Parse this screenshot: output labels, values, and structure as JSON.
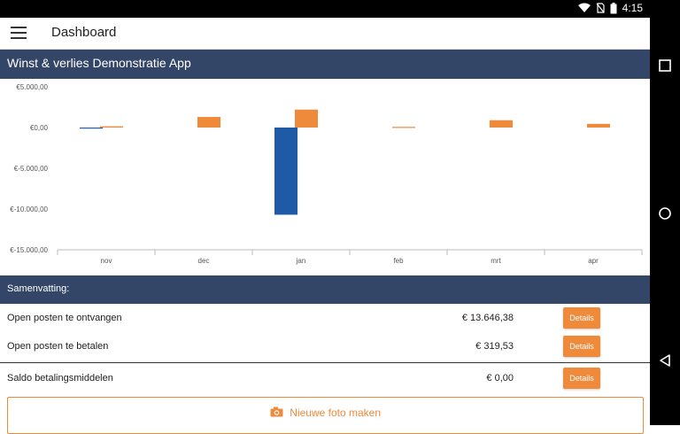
{
  "status_bar": {
    "time": "4:15",
    "icons": [
      "wifi-icon",
      "no-sim-icon",
      "battery-icon"
    ]
  },
  "nav_bar": {
    "buttons": [
      "recents-button",
      "home-button",
      "back-button"
    ]
  },
  "app_bar": {
    "title": "Dashboard",
    "menu_icon": "hamburger-menu-icon"
  },
  "chart_section": {
    "title": "Winst & verlies Demonstratie App"
  },
  "chart_data": {
    "type": "bar",
    "categories": [
      "nov",
      "dec",
      "jan",
      "feb",
      "mrt",
      "apr"
    ],
    "series": [
      {
        "color": "#1f5aa6",
        "values": [
          -50,
          0,
          -10700,
          0,
          0,
          0
        ]
      },
      {
        "color": "#ef8a3b",
        "values": [
          150,
          1300,
          2200,
          80,
          900,
          450
        ]
      }
    ],
    "y_ticks": [
      "€5.000,00",
      "€0,00",
      "€-5.000,00",
      "€-10.000,00",
      "€-15.000,00"
    ],
    "y_tick_values": [
      5000,
      0,
      -5000,
      -10000,
      -15000
    ],
    "ylim": [
      -15000,
      5000
    ]
  },
  "summary": {
    "title": "Samenvatting:",
    "rows": [
      {
        "label": "Open posten te ontvangen",
        "amount": "€ 13.646,38",
        "button": "Details"
      },
      {
        "label": "Open posten te betalen",
        "amount": "€ 319,53",
        "button": "Details"
      },
      {
        "label": "Saldo betalingsmiddelen",
        "amount": "€ 0,00",
        "button": "Details"
      }
    ]
  },
  "photo_button": {
    "label": "Nieuwe foto maken",
    "icon": "camera-icon"
  },
  "colors": {
    "header_bg": "#344667",
    "accent_orange": "#ef8a3b",
    "accent_blue": "#1f5aa6"
  }
}
